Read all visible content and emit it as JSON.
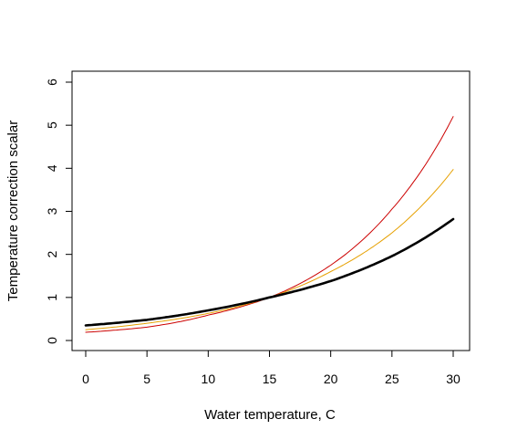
{
  "chart_data": {
    "type": "line",
    "title": "",
    "xlabel": "Water temperature, C",
    "ylabel": "Temperature correction scalar",
    "xlim": [
      0,
      30
    ],
    "ylim": [
      0,
      6
    ],
    "x_ticks": [
      "0",
      "5",
      "10",
      "15",
      "20",
      "25",
      "30"
    ],
    "y_ticks": [
      "0",
      "1",
      "2",
      "3",
      "4",
      "5",
      "6"
    ],
    "grid": false,
    "legend": "none",
    "series": [
      {
        "color": "#cc0000",
        "line_width": "thin",
        "x": [
          0,
          5,
          10,
          15,
          20,
          25,
          30
        ],
        "y": [
          0.19,
          0.31,
          0.59,
          1.0,
          1.75,
          3.05,
          5.2
        ]
      },
      {
        "color": "#e6a000",
        "line_width": "thin",
        "x": [
          0,
          5,
          10,
          15,
          20,
          25,
          30
        ],
        "y": [
          0.25,
          0.4,
          0.63,
          1.0,
          1.6,
          2.5,
          3.97
        ]
      },
      {
        "color": "#000000",
        "line_width": "thick",
        "x": [
          0,
          5,
          10,
          15,
          20,
          25,
          30
        ],
        "y": [
          0.35,
          0.48,
          0.7,
          1.0,
          1.38,
          1.96,
          2.82
        ]
      }
    ]
  }
}
